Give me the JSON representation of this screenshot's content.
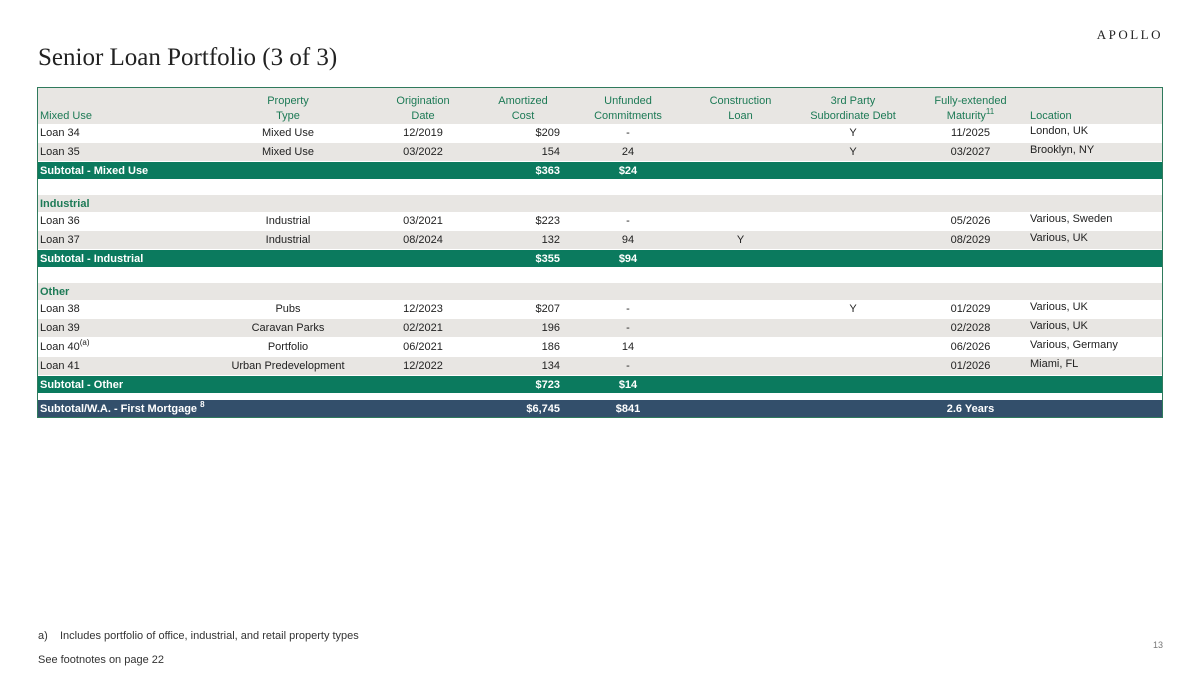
{
  "logo": "APOLLO",
  "title": "Senior Loan Portfolio (3 of 3)",
  "headers": {
    "name": "Mixed Use",
    "type": [
      "Property",
      "Type"
    ],
    "date": [
      "Origination",
      "Date"
    ],
    "cost": [
      "Amortized",
      "Cost"
    ],
    "unfunded": [
      "Unfunded",
      "Commitments"
    ],
    "construction": [
      "Construction",
      "Loan"
    ],
    "third": [
      "3rd Party",
      "Subordinate Debt"
    ],
    "maturity": [
      "Fully-extended",
      "Maturity"
    ],
    "maturity_sup": "11",
    "location": "Location"
  },
  "rows": [
    {
      "name": "Loan 34",
      "type": "Mixed Use",
      "date": "12/2019",
      "cost": "$209",
      "unfunded": "-",
      "construction": "",
      "third": "Y",
      "maturity": "11/2025",
      "location": "London, UK"
    },
    {
      "name": "Loan 35",
      "type": "Mixed Use",
      "date": "03/2022",
      "cost": "154",
      "unfunded": "24",
      "construction": "",
      "third": "Y",
      "maturity": "03/2027",
      "location": "Brooklyn, NY"
    },
    {
      "name": "Loan 36",
      "type": "Industrial",
      "date": "03/2021",
      "cost": "$223",
      "unfunded": "-",
      "construction": "",
      "third": "",
      "maturity": "05/2026",
      "location": "Various, Sweden"
    },
    {
      "name": "Loan 37",
      "type": "Industrial",
      "date": "08/2024",
      "cost": "132",
      "unfunded": "94",
      "construction": "Y",
      "third": "",
      "maturity": "08/2029",
      "location": "Various, UK"
    },
    {
      "name": "Loan 38",
      "type": "Pubs",
      "date": "12/2023",
      "cost": "$207",
      "unfunded": "-",
      "construction": "",
      "third": "Y",
      "maturity": "01/2029",
      "location": "Various, UK"
    },
    {
      "name": "Loan 39",
      "type": "Caravan Parks",
      "date": "02/2021",
      "cost": "196",
      "unfunded": "-",
      "construction": "",
      "third": "",
      "maturity": "02/2028",
      "location": "Various, UK"
    },
    {
      "name": "Loan 40",
      "name_sup": "(a)",
      "type": "Portfolio",
      "date": "06/2021",
      "cost": "186",
      "unfunded": "14",
      "construction": "",
      "third": "",
      "maturity": "06/2026",
      "location": "Various, Germany"
    },
    {
      "name": "Loan 41",
      "type": "Urban Predevelopment",
      "date": "12/2022",
      "cost": "134",
      "unfunded": "-",
      "construction": "",
      "third": "",
      "maturity": "01/2026",
      "location": "Miami, FL"
    }
  ],
  "subtotals": [
    {
      "label": "Subtotal - Mixed Use",
      "cost": "$363",
      "unfunded": "$24"
    },
    {
      "label": "Subtotal - Industrial",
      "cost": "$355",
      "unfunded": "$94"
    },
    {
      "label": "Subtotal - Other",
      "cost": "$723",
      "unfunded": "$14"
    }
  ],
  "sections": [
    "Industrial",
    "Other"
  ],
  "grand": {
    "label": "Subtotal/W.A. - First Mortgage",
    "sup": "8",
    "cost": "$6,745",
    "unfunded": "$841",
    "maturity": "2.6 Years"
  },
  "footnote": {
    "marker": "a)",
    "text": "Includes portfolio of office, industrial, and retail property types"
  },
  "see_footnotes": "See footnotes on page 22",
  "page_number": "13"
}
